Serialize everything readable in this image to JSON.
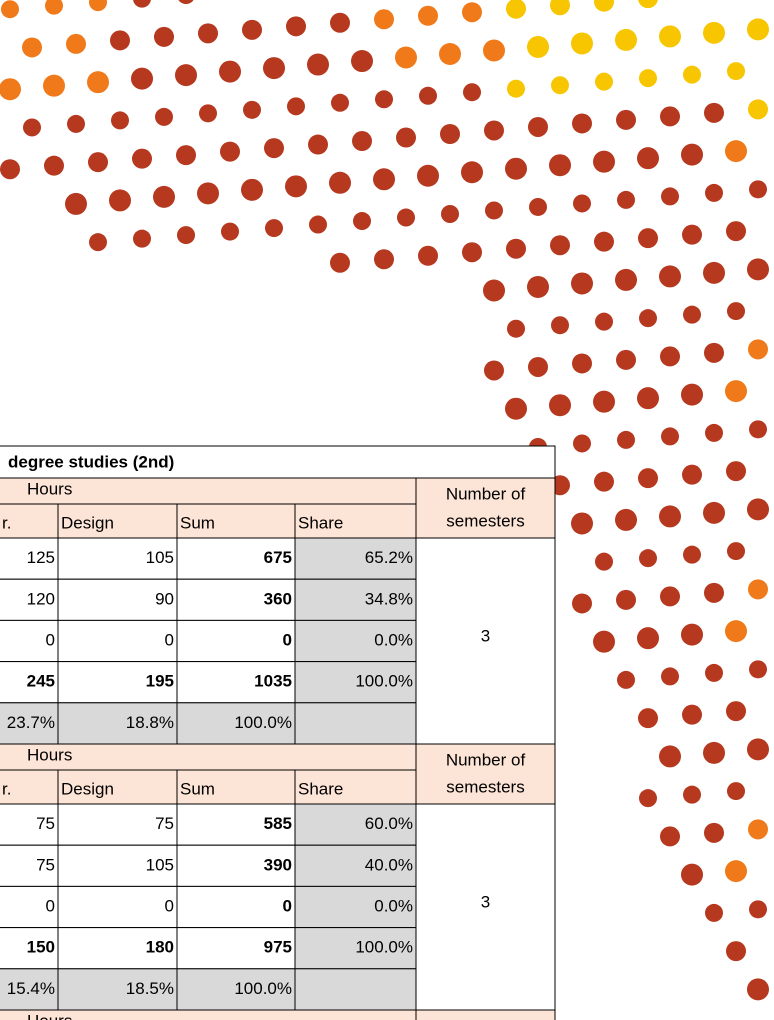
{
  "title": "degree studies (2nd)",
  "blocks": [
    {
      "group_header": "Hours",
      "semesters_header": [
        "Number of",
        "semesters"
      ],
      "columns": [
        "r.",
        "Design",
        "Sum",
        "Share"
      ],
      "rows": [
        [
          "125",
          "105",
          "675",
          "65.2%"
        ],
        [
          "120",
          "90",
          "360",
          "34.8%"
        ],
        [
          "0",
          "0",
          "0",
          "0.0%"
        ],
        [
          "245",
          "195",
          "1035",
          "100.0%"
        ],
        [
          "23.7%",
          "18.8%",
          "100.0%"
        ]
      ],
      "semesters": "3"
    },
    {
      "group_header": "Hours",
      "semesters_header": [
        "Number of",
        "semesters"
      ],
      "columns": [
        "r.",
        "Design",
        "Sum",
        "Share"
      ],
      "rows": [
        [
          "75",
          "75",
          "585",
          "60.0%"
        ],
        [
          "75",
          "105",
          "390",
          "40.0%"
        ],
        [
          "0",
          "0",
          "0",
          "0.0%"
        ],
        [
          "150",
          "180",
          "975",
          "100.0%"
        ],
        [
          "15.4%",
          "18.5%",
          "100.0%"
        ]
      ],
      "semesters": "3"
    },
    {
      "group_header": "Hours"
    }
  ]
}
